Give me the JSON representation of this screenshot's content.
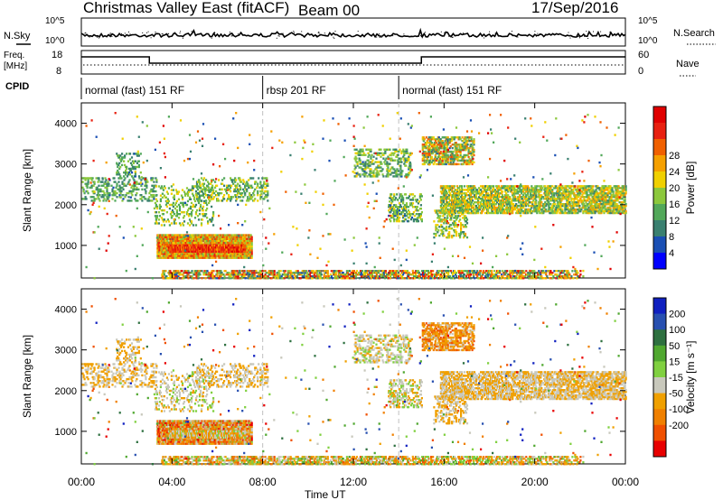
{
  "header": {
    "title": "Christmas Valley East (fitACF)",
    "beam": "Beam 00",
    "date": "17/Sep/2016"
  },
  "colors": {
    "power_scale": [
      "#0000ff",
      "#1a4fb4",
      "#3a8070",
      "#52a85a",
      "#8cc83c",
      "#f0d000",
      "#f5a000",
      "#f06000",
      "#e82010",
      "#e00000"
    ],
    "velocity_scale": [
      "#1020c0",
      "#2850b0",
      "#2e7040",
      "#50a830",
      "#80d040",
      "#c8c8bc",
      "#f0a000",
      "#f08000",
      "#f05000",
      "#e80000"
    ],
    "noise": "#000000",
    "axis": "#000000",
    "gridline": "#c0c0c0"
  },
  "noise_panel": {
    "left_label": "N.Sky",
    "right_label": "N.Search",
    "left_ticks": [
      "10^5",
      "10^0"
    ],
    "right_ticks": [
      "10^5",
      "10^0"
    ]
  },
  "freq_panel": {
    "left_label_1": "Freq.",
    "left_label_2": "[MHz]",
    "left_ticks": [
      "18",
      "8"
    ],
    "right_label": "Nave",
    "right_ticks": [
      "60",
      "0"
    ],
    "cpid_label": "CPID",
    "freq_segments": [
      {
        "start": 0.0,
        "end": 3.0,
        "level": "high"
      },
      {
        "start": 3.0,
        "end": 15.0,
        "level": "low"
      },
      {
        "start": 15.0,
        "end": 24.0,
        "level": "high"
      }
    ]
  },
  "cpid_segments": [
    {
      "start": 0.0,
      "end": 8.0,
      "label": "normal (fast) 151 RF"
    },
    {
      "start": 8.0,
      "end": 14.0,
      "label": "rbsp 201 RF"
    },
    {
      "start": 14.0,
      "end": 24.0,
      "label": "normal (fast) 151 RF"
    }
  ],
  "chart_data": [
    {
      "type": "heatmap",
      "panel": "power",
      "ylabel": "Slant Range [km]",
      "y_ticks": [
        1000,
        2000,
        3000,
        4000
      ],
      "ylim": [
        200,
        4500
      ],
      "x_range": [
        0,
        24
      ],
      "colorbar_label": "Power [dB]",
      "colorbar_ticks": [
        "4",
        "8",
        "12",
        "16",
        "20",
        "24",
        "28"
      ],
      "colorbar_range": [
        0,
        32
      ]
    },
    {
      "type": "heatmap",
      "panel": "velocity",
      "ylabel": "Slant Range [km]",
      "y_ticks": [
        1000,
        2000,
        3000,
        4000
      ],
      "ylim": [
        200,
        4500
      ],
      "x_range": [
        0,
        24
      ],
      "colorbar_label": "Velocity [m s⁻¹]",
      "colorbar_ticks": [
        "200",
        "100",
        "50",
        "15",
        "-15",
        "-50",
        "-100",
        "-200"
      ]
    }
  ],
  "x_axis": {
    "ticks": [
      "00:00",
      "04:00",
      "08:00",
      "12:00",
      "16:00",
      "20:00",
      "00:00"
    ],
    "tick_values": [
      0,
      4,
      8,
      12,
      16,
      20,
      24
    ],
    "label": "Time UT"
  }
}
